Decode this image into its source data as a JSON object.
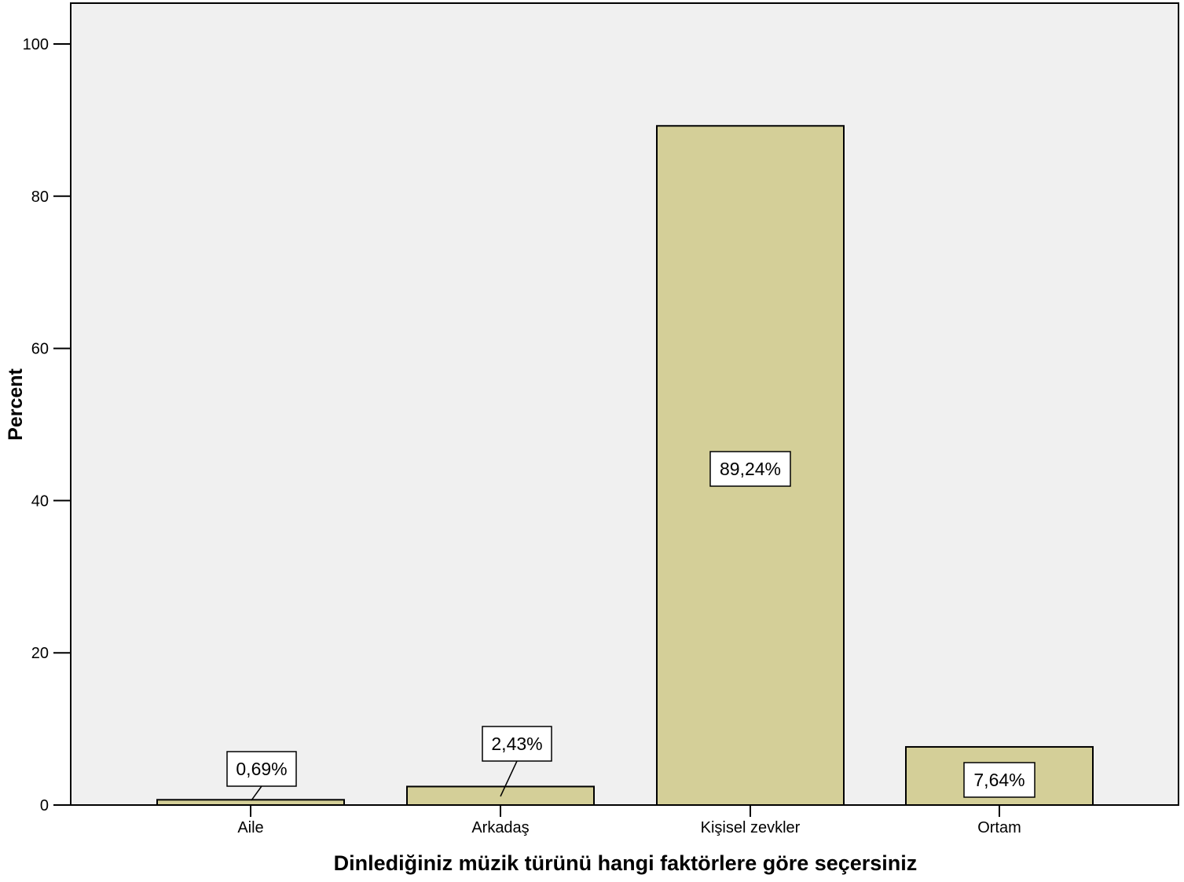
{
  "chart_data": {
    "type": "bar",
    "categories": [
      "Aile",
      "Arkadaş",
      "Kişisel zevkler",
      "Ortam"
    ],
    "values": [
      0.69,
      2.43,
      89.24,
      7.64
    ],
    "data_labels": [
      "0,69%",
      "2,43%",
      "89,24%",
      "7,64%"
    ],
    "xlabel": "Dinlediğiniz müzik türünü hangi faktörlere göre seçersiniz",
    "ylabel": "Percent",
    "ylim": [
      0,
      100
    ],
    "yticks": [
      0,
      20,
      40,
      60,
      80,
      100
    ],
    "ytick_labels": [
      "0",
      "20",
      "40",
      "60",
      "80",
      "100"
    ],
    "grid": false,
    "colors": {
      "bar_fill": "#d4cf98",
      "plot_background": "#f0f0f0",
      "axis": "#000000",
      "label_box": "#ffffff"
    }
  }
}
